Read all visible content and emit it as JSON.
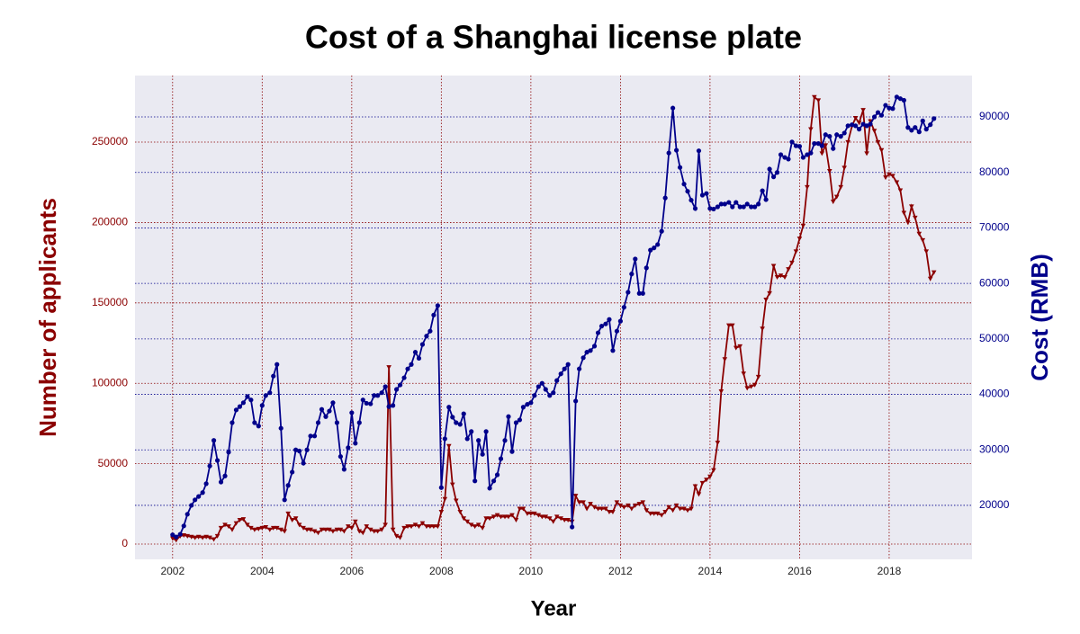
{
  "chart_data": {
    "type": "line",
    "title": "Cost of a Shanghai license plate",
    "xlabel": "Year",
    "ylabel": "Number of applicants",
    "y2label": "Cost (RMB)",
    "x": [
      2002,
      2002.08,
      2002.17,
      2002.25,
      2002.33,
      2002.42,
      2002.5,
      2002.58,
      2002.67,
      2002.75,
      2002.83,
      2002.92,
      2003,
      2003.08,
      2003.17,
      2003.25,
      2003.33,
      2003.42,
      2003.5,
      2003.58,
      2003.67,
      2003.75,
      2003.83,
      2003.92,
      2004,
      2004.08,
      2004.17,
      2004.25,
      2004.33,
      2004.42,
      2004.5,
      2004.58,
      2004.67,
      2004.75,
      2004.83,
      2004.92,
      2005,
      2005.08,
      2005.17,
      2005.25,
      2005.33,
      2005.42,
      2005.5,
      2005.58,
      2005.67,
      2005.75,
      2005.83,
      2005.92,
      2006,
      2006.08,
      2006.17,
      2006.25,
      2006.33,
      2006.42,
      2006.5,
      2006.58,
      2006.67,
      2006.75,
      2006.83,
      2006.92,
      2007,
      2007.08,
      2007.17,
      2007.25,
      2007.33,
      2007.42,
      2007.5,
      2007.58,
      2007.67,
      2007.75,
      2007.83,
      2007.92,
      2008,
      2008.08,
      2008.17,
      2008.25,
      2008.33,
      2008.42,
      2008.5,
      2008.58,
      2008.67,
      2008.75,
      2008.83,
      2008.92,
      2009,
      2009.08,
      2009.17,
      2009.25,
      2009.33,
      2009.42,
      2009.5,
      2009.58,
      2009.67,
      2009.75,
      2009.83,
      2009.92,
      2010,
      2010.08,
      2010.17,
      2010.25,
      2010.33,
      2010.42,
      2010.5,
      2010.58,
      2010.67,
      2010.75,
      2010.83,
      2010.92,
      2011,
      2011.08,
      2011.17,
      2011.25,
      2011.33,
      2011.42,
      2011.5,
      2011.58,
      2011.67,
      2011.75,
      2011.83,
      2011.92,
      2012,
      2012.08,
      2012.17,
      2012.25,
      2012.33,
      2012.42,
      2012.5,
      2012.58,
      2012.67,
      2012.75,
      2012.83,
      2012.92,
      2013,
      2013.08,
      2013.17,
      2013.25,
      2013.33,
      2013.42,
      2013.5,
      2013.58,
      2013.67,
      2013.75,
      2013.83,
      2013.92,
      2014,
      2014.08,
      2014.17,
      2014.25,
      2014.33,
      2014.42,
      2014.5,
      2014.58,
      2014.67,
      2014.75,
      2014.83,
      2014.92,
      2015,
      2015.08,
      2015.17,
      2015.25,
      2015.33,
      2015.42,
      2015.5,
      2015.58,
      2015.67,
      2015.75,
      2015.83,
      2015.92,
      2016,
      2016.08,
      2016.17,
      2016.25,
      2016.33,
      2016.42,
      2016.5,
      2016.58,
      2016.67,
      2016.75,
      2016.83,
      2016.92,
      2017,
      2017.08,
      2017.17,
      2017.25,
      2017.33,
      2017.42,
      2017.5,
      2017.58,
      2017.67,
      2017.75,
      2017.83,
      2017.92,
      2018,
      2018.08,
      2018.17,
      2018.25,
      2018.33,
      2018.42,
      2018.5,
      2018.58,
      2018.67,
      2018.75,
      2018.83,
      2018.92,
      2019
    ],
    "series": [
      {
        "color": "#8b0000",
        "axis": "y",
        "marker": "triangle",
        "values": [
          3500,
          2500,
          5000,
          5500,
          5000,
          4500,
          4000,
          4500,
          4000,
          4500,
          4000,
          3000,
          5000,
          10000,
          12000,
          11000,
          9000,
          13000,
          15000,
          15500,
          12000,
          10000,
          9000,
          9500,
          10000,
          10500,
          9000,
          10000,
          10000,
          9000,
          8000,
          19000,
          15000,
          16000,
          12000,
          10000,
          9000,
          9000,
          8000,
          7000,
          9000,
          9000,
          9000,
          8000,
          9000,
          9000,
          8000,
          11000,
          10000,
          14000,
          8000,
          7000,
          11000,
          9000,
          8000,
          8000,
          9000,
          12000,
          110000,
          9000,
          5000,
          4000,
          10000,
          11000,
          11000,
          12000,
          11000,
          13000,
          11000,
          11000,
          11000,
          11000,
          20000,
          28000,
          61000,
          37000,
          27000,
          20000,
          16000,
          14000,
          12000,
          11000,
          12000,
          10000,
          16000,
          16000,
          17000,
          18000,
          17000,
          17000,
          17000,
          18000,
          15000,
          22000,
          22000,
          19000,
          19000,
          19000,
          18000,
          17000,
          17000,
          16000,
          14000,
          17000,
          16000,
          15000,
          15000,
          14000,
          30000,
          26000,
          26000,
          22000,
          25000,
          23000,
          22000,
          22000,
          22000,
          20000,
          20000,
          26000,
          24000,
          23000,
          24000,
          22000,
          24000,
          25000,
          26000,
          21000,
          19000,
          19000,
          19000,
          18000,
          20000,
          23000,
          21000,
          24000,
          22000,
          22000,
          21000,
          22000,
          36000,
          31000,
          38000,
          40000,
          42000,
          46000,
          63000,
          95000,
          115000,
          136000,
          136000,
          122000,
          123000,
          106000,
          97000,
          98000,
          99000,
          104000,
          134000,
          152000,
          156000,
          173000,
          166000,
          167000,
          166000,
          171000,
          175000,
          182000,
          190000,
          198000,
          222000,
          258000,
          278000,
          276000,
          243000,
          248000,
          232000,
          213000,
          216000,
          222000,
          234000,
          250000,
          260000,
          265000,
          262000,
          270000,
          243000,
          263000,
          257000,
          250000,
          245000,
          228000,
          230000,
          229000,
          225000,
          220000,
          206000,
          200000,
          210000,
          203000,
          193000,
          189000,
          182000,
          165000,
          169000
        ]
      },
      {
        "color": "#00008b",
        "axis": "y2",
        "marker": "circle",
        "values": [
          14700,
          14300,
          14800,
          16300,
          18400,
          20000,
          21000,
          21600,
          22300,
          23900,
          27100,
          31700,
          28100,
          24200,
          25300,
          29600,
          34900,
          37200,
          37800,
          38500,
          39600,
          39000,
          34900,
          34300,
          38000,
          39800,
          40300,
          43300,
          45400,
          33900,
          21000,
          23600,
          26000,
          30000,
          29800,
          27600,
          30000,
          32500,
          32500,
          34900,
          37300,
          36000,
          37000,
          38500,
          34900,
          28800,
          26500,
          30400,
          36700,
          31200,
          34900,
          39000,
          38400,
          38300,
          39800,
          39800,
          40300,
          41400,
          37800,
          38000,
          40900,
          41700,
          43000,
          44600,
          45400,
          47600,
          46500,
          49000,
          50500,
          51400,
          54300,
          56000,
          23200,
          32000,
          37700,
          35900,
          34900,
          34600,
          36500,
          32000,
          33300,
          24400,
          31700,
          29200,
          33300,
          23100,
          24400,
          25500,
          28400,
          31700,
          36000,
          29700,
          34900,
          35400,
          37700,
          38200,
          38500,
          39800,
          41400,
          42000,
          40900,
          39800,
          40300,
          42500,
          43700,
          44600,
          45400,
          16100,
          38800,
          44600,
          46600,
          47600,
          47900,
          48700,
          51100,
          52300,
          52700,
          53500,
          47900,
          51400,
          53200,
          55700,
          58400,
          61700,
          64400,
          58200,
          58200,
          62800,
          66000,
          66400,
          67000,
          69400,
          75400,
          83500,
          91600,
          84000,
          80900,
          77900,
          76600,
          75000,
          73500,
          83900,
          75900,
          76200,
          73500,
          73400,
          73800,
          74300,
          74300,
          74600,
          73800,
          74600,
          73800,
          73800,
          74300,
          73800,
          73800,
          74300,
          76700,
          75100,
          80600,
          79200,
          80000,
          83200,
          82700,
          82400,
          85500,
          84800,
          84700,
          82700,
          83200,
          83500,
          85200,
          85200,
          84800,
          86800,
          86500,
          84300,
          86800,
          86500,
          87100,
          88400,
          88600,
          88400,
          87800,
          88700,
          88400,
          88700,
          90000,
          90800,
          90300,
          92100,
          91600,
          91500,
          93600,
          93300,
          93000,
          88100,
          87600,
          88100,
          87300,
          89300,
          87800,
          88600,
          89700
        ]
      }
    ],
    "xlim": [
      2001.16,
      2019.85
    ],
    "xticks": [
      2002,
      2004,
      2006,
      2008,
      2010,
      2012,
      2014,
      2016,
      2018
    ],
    "ylim": [
      -9500,
      291400
    ],
    "yticks": [
      0,
      50000,
      100000,
      150000,
      200000,
      250000
    ],
    "y2lim": [
      10270,
      97460
    ],
    "y2ticks": [
      20000,
      30000,
      40000,
      50000,
      60000,
      70000,
      80000,
      90000
    ],
    "grid": true,
    "background": "#eaeaf2"
  }
}
